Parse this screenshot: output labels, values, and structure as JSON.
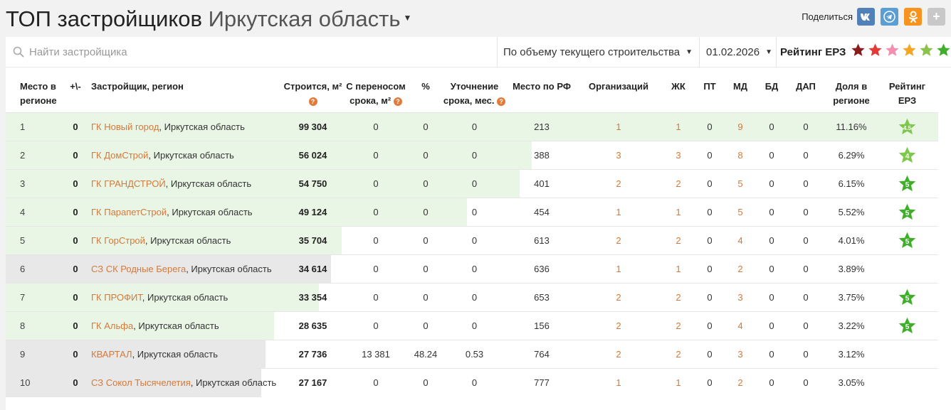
{
  "header": {
    "title_main": "ТОП застройщиков",
    "title_region": "Иркутская область",
    "share_label": "Поделиться",
    "share_icons": [
      "vk-icon",
      "telegram-icon",
      "odnoklassniki-icon",
      "plus-icon"
    ]
  },
  "toolbar": {
    "search_placeholder": "Найти застройщика",
    "sort_select": "По объему текущего строительства",
    "date_select": "01.02.2026",
    "rating_label": "Рейтинг ЕРЗ",
    "rating_star_colors": [
      "#8b1a1a",
      "#e53935",
      "#f48fb1",
      "#f5a623",
      "#8bc34a",
      "#3fae29"
    ]
  },
  "table": {
    "headers": {
      "place": [
        "Место в",
        "регионе"
      ],
      "delta": "+\\-",
      "developer": "Застройщик, регион",
      "building": "Строится, м²",
      "postponed": [
        "С переносом",
        "срока, м²"
      ],
      "percent": "%",
      "refine": [
        "Уточнение",
        "срока, мес."
      ],
      "place_rf": "Место по РФ",
      "orgs": "Организаций",
      "zhk": "ЖК",
      "pt": "ПТ",
      "md": "МД",
      "bd": "БД",
      "dap": "ДАП",
      "share": [
        "Доля в",
        "регионе"
      ],
      "rating": [
        "Рейтинг",
        "ЕРЗ"
      ]
    },
    "rows": [
      {
        "place": "1",
        "delta": "0",
        "name": "ГК Новый город",
        "region": ", Иркутская область",
        "built": "99 304",
        "postponed": "0",
        "percent": "0",
        "refine": "0",
        "place_rf": "213",
        "orgs": "1",
        "zhk": "1",
        "pt": "0",
        "md": "9",
        "bd": "0",
        "dap": "0",
        "share": "11.16%",
        "rating": "4.5",
        "bar_fraction": 1.0,
        "bar_color": "green"
      },
      {
        "place": "2",
        "delta": "0",
        "name": "ГК ДомСтрой",
        "region": ", Иркутская область",
        "built": "56 024",
        "postponed": "0",
        "percent": "0",
        "refine": "0",
        "place_rf": "388",
        "orgs": "3",
        "zhk": "3",
        "pt": "0",
        "md": "8",
        "bd": "0",
        "dap": "0",
        "share": "6.29%",
        "rating": "4",
        "bar_fraction": 0.564,
        "bar_color": "green"
      },
      {
        "place": "3",
        "delta": "0",
        "name": "ГК ГРАНДСТРОЙ",
        "region": ", Иркутская область",
        "built": "54 750",
        "postponed": "0",
        "percent": "0",
        "refine": "0",
        "place_rf": "401",
        "orgs": "2",
        "zhk": "2",
        "pt": "0",
        "md": "5",
        "bd": "0",
        "dap": "0",
        "share": "6.15%",
        "rating": "5",
        "bar_fraction": 0.551,
        "bar_color": "green"
      },
      {
        "place": "4",
        "delta": "0",
        "name": "ГК ПарапетСтрой",
        "region": ", Иркутская область",
        "built": "49 124",
        "postponed": "0",
        "percent": "0",
        "refine": "0",
        "place_rf": "454",
        "orgs": "1",
        "zhk": "1",
        "pt": "0",
        "md": "5",
        "bd": "0",
        "dap": "0",
        "share": "5.52%",
        "rating": "5",
        "bar_fraction": 0.495,
        "bar_color": "green"
      },
      {
        "place": "5",
        "delta": "0",
        "name": "ГК ГорСтрой",
        "region": ", Иркутская область",
        "built": "35 704",
        "postponed": "0",
        "percent": "0",
        "refine": "0",
        "place_rf": "613",
        "orgs": "2",
        "zhk": "2",
        "pt": "0",
        "md": "4",
        "bd": "0",
        "dap": "0",
        "share": "4.01%",
        "rating": "5",
        "bar_fraction": 0.36,
        "bar_color": "green"
      },
      {
        "place": "6",
        "delta": "0",
        "name": "СЗ СК Родные Берега",
        "region": ", Иркутская область",
        "built": "34 614",
        "postponed": "0",
        "percent": "0",
        "refine": "0",
        "place_rf": "636",
        "orgs": "1",
        "zhk": "1",
        "pt": "0",
        "md": "2",
        "bd": "0",
        "dap": "0",
        "share": "3.89%",
        "rating": "",
        "bar_fraction": 0.349,
        "bar_color": "gray"
      },
      {
        "place": "7",
        "delta": "0",
        "name": "ГК ПРОФИТ",
        "region": ", Иркутская область",
        "built": "33 354",
        "postponed": "0",
        "percent": "0",
        "refine": "0",
        "place_rf": "653",
        "orgs": "2",
        "zhk": "2",
        "pt": "0",
        "md": "3",
        "bd": "0",
        "dap": "0",
        "share": "3.75%",
        "rating": "5",
        "bar_fraction": 0.336,
        "bar_color": "green"
      },
      {
        "place": "8",
        "delta": "0",
        "name": "ГК Альфа",
        "region": ", Иркутская область",
        "built": "28 635",
        "postponed": "0",
        "percent": "0",
        "refine": "0",
        "place_rf": "156",
        "orgs": "2",
        "zhk": "2",
        "pt": "0",
        "md": "4",
        "bd": "0",
        "dap": "0",
        "share": "3.22%",
        "rating": "5",
        "bar_fraction": 0.288,
        "bar_color": "green"
      },
      {
        "place": "9",
        "delta": "0",
        "name": "КВАРТАЛ",
        "region": ", Иркутская область",
        "built": "27 736",
        "postponed": "13 381",
        "percent": "48.24",
        "refine": "0.53",
        "place_rf": "764",
        "orgs": "2",
        "zhk": "2",
        "pt": "0",
        "md": "3",
        "bd": "0",
        "dap": "0",
        "share": "3.12%",
        "rating": "",
        "bar_fraction": 0.279,
        "bar_color": "gray"
      },
      {
        "place": "10",
        "delta": "0",
        "name": "СЗ Сокол Тысячелетия",
        "region": ", Иркутская область",
        "built": "27 167",
        "postponed": "0",
        "percent": "0",
        "refine": "0",
        "place_rf": "777",
        "orgs": "1",
        "zhk": "1",
        "pt": "0",
        "md": "2",
        "bd": "0",
        "dap": "0",
        "share": "3.05%",
        "rating": "",
        "bar_fraction": 0.274,
        "bar_color": "gray"
      }
    ]
  }
}
